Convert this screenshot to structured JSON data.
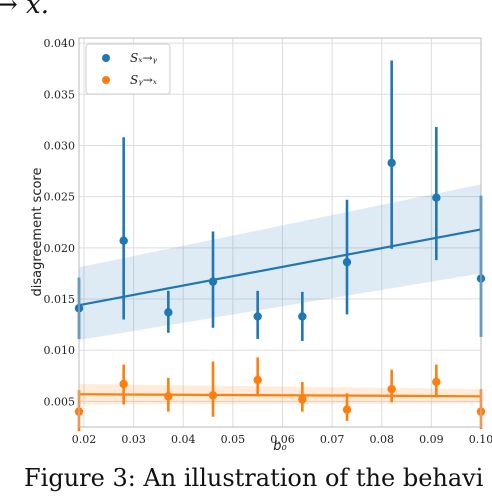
{
  "page": {
    "top_fragment": "→ x.",
    "caption_fragment": "Figure 3:  An illustration of the behavi"
  },
  "chart_data": {
    "type": "scatter",
    "xlabel": "b₀",
    "ylabel": "disagreement score",
    "xlim": [
      0.019,
      0.1
    ],
    "ylim": [
      0.0025,
      0.0405
    ],
    "x_ticks": [
      "0.02",
      "0.03",
      "0.04",
      "0.05",
      "0.06",
      "0.07",
      "0.08",
      "0.09",
      "0.10"
    ],
    "y_ticks": [
      "0.005",
      "0.010",
      "0.015",
      "0.020",
      "0.025",
      "0.030",
      "0.035",
      "0.040"
    ],
    "grid": true,
    "legend": {
      "placement": "top-left",
      "entries": [
        "Sₓ→ᵧ",
        "Sᵧ→ₓ"
      ]
    },
    "series": [
      {
        "name": "Sₓ→ᵧ",
        "color": "#1f77b4",
        "points": [
          {
            "x": 0.019,
            "y": 0.0141,
            "low": 0.0111,
            "high": 0.0171
          },
          {
            "x": 0.028,
            "y": 0.0207,
            "low": 0.013,
            "high": 0.0308
          },
          {
            "x": 0.037,
            "y": 0.0137,
            "low": 0.0117,
            "high": 0.0158
          },
          {
            "x": 0.046,
            "y": 0.0167,
            "low": 0.0122,
            "high": 0.0216
          },
          {
            "x": 0.055,
            "y": 0.0133,
            "low": 0.0111,
            "high": 0.0158
          },
          {
            "x": 0.064,
            "y": 0.0133,
            "low": 0.0109,
            "high": 0.0157
          },
          {
            "x": 0.073,
            "y": 0.0186,
            "low": 0.0135,
            "high": 0.0247
          },
          {
            "x": 0.082,
            "y": 0.0283,
            "low": 0.0199,
            "high": 0.0383
          },
          {
            "x": 0.091,
            "y": 0.0249,
            "low": 0.0188,
            "high": 0.0318
          },
          {
            "x": 0.1,
            "y": 0.017,
            "low": 0.0113,
            "high": 0.0251
          }
        ],
        "regression": {
          "x": [
            0.019,
            0.1
          ],
          "y": [
            0.0144,
            0.0218
          ]
        },
        "ci_low": [
          0.011,
          0.0175
        ],
        "ci_high": [
          0.0181,
          0.0262
        ]
      },
      {
        "name": "Sᵧ→ₓ",
        "color": "#ff7f0e",
        "points": [
          {
            "x": 0.019,
            "y": 0.004,
            "low": 0.0021,
            "high": 0.0061
          },
          {
            "x": 0.028,
            "y": 0.0067,
            "low": 0.0047,
            "high": 0.0086
          },
          {
            "x": 0.037,
            "y": 0.0055,
            "low": 0.004,
            "high": 0.0073
          },
          {
            "x": 0.046,
            "y": 0.0056,
            "low": 0.0035,
            "high": 0.0089
          },
          {
            "x": 0.055,
            "y": 0.0071,
            "low": 0.0056,
            "high": 0.0093
          },
          {
            "x": 0.064,
            "y": 0.0052,
            "low": 0.004,
            "high": 0.0069
          },
          {
            "x": 0.073,
            "y": 0.0042,
            "low": 0.0031,
            "high": 0.0058
          },
          {
            "x": 0.082,
            "y": 0.0062,
            "low": 0.0049,
            "high": 0.0081
          },
          {
            "x": 0.091,
            "y": 0.0069,
            "low": 0.0054,
            "high": 0.0086
          },
          {
            "x": 0.1,
            "y": 0.004,
            "low": 0.0023,
            "high": 0.0062
          }
        ],
        "regression": {
          "x": [
            0.019,
            0.1
          ],
          "y": [
            0.0057,
            0.0055
          ]
        },
        "ci_low": [
          0.0047,
          0.0048
        ],
        "ci_high": [
          0.0067,
          0.0062
        ]
      }
    ]
  }
}
